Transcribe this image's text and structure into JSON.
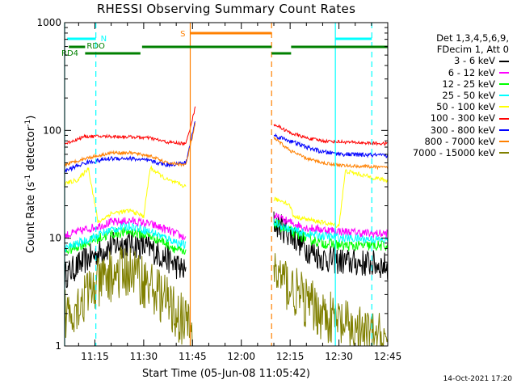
{
  "chart_data": {
    "type": "line",
    "title": "RHESSI Observing Summary Count Rates",
    "xlabel": "Start Time (05-Jun-08 11:05:42)",
    "ylabel_main": "Count Rate (s",
    "ylabel_sup1": "-1",
    "ylabel_mid": " detector",
    "ylabel_sup2": "-1",
    "ylabel_end": ")",
    "y_scale": "log",
    "ylim": [
      1,
      1000
    ],
    "xlim_min": [
      65.7,
      165
    ],
    "y_ticks": [
      {
        "v": 1,
        "label": "1"
      },
      {
        "v": 10,
        "label": "10"
      },
      {
        "v": 100,
        "label": "100"
      },
      {
        "v": 1000,
        "label": "1000"
      }
    ],
    "x_ticks": [
      {
        "t": 75,
        "label": "11:15"
      },
      {
        "t": 90,
        "label": "11:30"
      },
      {
        "t": 105,
        "label": "11:45"
      },
      {
        "t": 120,
        "label": "12:00"
      },
      {
        "t": 135,
        "label": "12:15"
      },
      {
        "t": 150,
        "label": "12:30"
      },
      {
        "t": 165,
        "label": "12:45"
      }
    ],
    "legend_header": [
      "Det 1,3,4,5,6,9,",
      "FDecim 1, Att 0"
    ],
    "series": [
      {
        "name": "3 - 6 keV",
        "color": "#000000",
        "seg1": [
          [
            65.7,
            4.5
          ],
          [
            72,
            6.2
          ],
          [
            80,
            8.5
          ],
          [
            86,
            9.0
          ],
          [
            92,
            8.0
          ],
          [
            97,
            6.5
          ],
          [
            103,
            4.8
          ]
        ],
        "seg2": [
          [
            130,
            14
          ],
          [
            135,
            11
          ],
          [
            140,
            8
          ],
          [
            145,
            6.5
          ],
          [
            152,
            6
          ],
          [
            160,
            5.8
          ],
          [
            165,
            5.5
          ]
        ],
        "noise": 0.13
      },
      {
        "name": "6 - 12 keV",
        "color": "#ff00ff",
        "seg1": [
          [
            65.7,
            10.5
          ],
          [
            72,
            12
          ],
          [
            80,
            14
          ],
          [
            86,
            14.5
          ],
          [
            92,
            13.5
          ],
          [
            97,
            12
          ],
          [
            103,
            10
          ]
        ],
        "seg2": [
          [
            130,
            16
          ],
          [
            135,
            14
          ],
          [
            140,
            12.5
          ],
          [
            145,
            12
          ],
          [
            152,
            11.5
          ],
          [
            160,
            11
          ],
          [
            165,
            11
          ]
        ],
        "noise": 0.04
      },
      {
        "name": "12 - 25 keV",
        "color": "#00ff00",
        "seg1": [
          [
            65.7,
            7.5
          ],
          [
            72,
            9
          ],
          [
            80,
            11
          ],
          [
            86,
            11.5
          ],
          [
            92,
            10.5
          ],
          [
            97,
            9
          ],
          [
            103,
            7
          ]
        ],
        "seg2": [
          [
            130,
            14
          ],
          [
            135,
            11.5
          ],
          [
            140,
            10
          ],
          [
            145,
            9
          ],
          [
            152,
            8.5
          ],
          [
            160,
            8.5
          ],
          [
            165,
            8.5
          ]
        ],
        "noise": 0.05
      },
      {
        "name": "25 - 50 keV",
        "color": "#00ffff",
        "seg1": [
          [
            65.7,
            8
          ],
          [
            72,
            9.5
          ],
          [
            80,
            12
          ],
          [
            86,
            13
          ],
          [
            92,
            11.5
          ],
          [
            97,
            10
          ],
          [
            103,
            8.5
          ]
        ],
        "seg2": [
          [
            130,
            14
          ],
          [
            135,
            12
          ],
          [
            140,
            11
          ],
          [
            145,
            10.5
          ],
          [
            152,
            10
          ],
          [
            160,
            9.8
          ],
          [
            165,
            9.5
          ]
        ],
        "noise": 0.04
      },
      {
        "name": "50 - 100 keV",
        "color": "#ffff00",
        "seg1": [
          [
            65.7,
            32
          ],
          [
            70,
            35
          ],
          [
            73,
            45
          ],
          [
            76,
            14
          ],
          [
            80,
            17
          ],
          [
            86,
            18
          ],
          [
            90,
            16
          ],
          [
            92,
            45
          ],
          [
            97,
            35
          ],
          [
            103,
            30
          ]
        ],
        "seg2": [
          [
            130,
            23
          ],
          [
            133,
            22
          ],
          [
            135,
            20
          ],
          [
            136,
            16
          ],
          [
            140,
            15
          ],
          [
            145,
            14
          ],
          [
            150,
            13
          ],
          [
            152,
            42
          ],
          [
            158,
            38
          ],
          [
            165,
            34
          ]
        ],
        "noise": 0.02
      },
      {
        "name": "100 - 300 keV",
        "color": "#ff0000",
        "seg1": [
          [
            65.7,
            75
          ],
          [
            72,
            88
          ],
          [
            80,
            88
          ],
          [
            86,
            87
          ],
          [
            92,
            85
          ],
          [
            97,
            78
          ],
          [
            103,
            75
          ],
          [
            106,
            170
          ]
        ],
        "seg2": [
          [
            130,
            115
          ],
          [
            135,
            95
          ],
          [
            140,
            85
          ],
          [
            145,
            80
          ],
          [
            152,
            78
          ],
          [
            160,
            76
          ],
          [
            165,
            75
          ]
        ],
        "noise": 0.015
      },
      {
        "name": "300 - 800 keV",
        "color": "#0000ff",
        "seg1": [
          [
            65.7,
            42
          ],
          [
            72,
            50
          ],
          [
            80,
            55
          ],
          [
            86,
            55
          ],
          [
            92,
            52
          ],
          [
            97,
            48
          ],
          [
            103,
            50
          ],
          [
            106,
            130
          ]
        ],
        "seg2": [
          [
            130,
            90
          ],
          [
            135,
            80
          ],
          [
            140,
            70
          ],
          [
            145,
            63
          ],
          [
            152,
            60
          ],
          [
            160,
            59
          ],
          [
            165,
            58
          ]
        ],
        "noise": 0.02
      },
      {
        "name": "800 - 7000 keV",
        "color": "#ff8000",
        "seg1": [
          [
            65.7,
            48
          ],
          [
            72,
            55
          ],
          [
            80,
            62
          ],
          [
            86,
            62
          ],
          [
            92,
            58
          ],
          [
            97,
            50
          ],
          [
            103,
            48
          ],
          [
            106,
            120
          ]
        ],
        "seg2": [
          [
            130,
            85
          ],
          [
            135,
            65
          ],
          [
            140,
            55
          ],
          [
            145,
            50
          ],
          [
            152,
            47
          ],
          [
            160,
            46
          ],
          [
            165,
            45
          ]
        ],
        "noise": 0.015
      },
      {
        "name": "7000 - 15000 keV",
        "color": "#808000",
        "seg1": [
          [
            65.7,
            2
          ],
          [
            70,
            2.5
          ],
          [
            75,
            3.5
          ],
          [
            80,
            4.5
          ],
          [
            86,
            5
          ],
          [
            90,
            4
          ],
          [
            95,
            3
          ],
          [
            100,
            2
          ],
          [
            105,
            1.4
          ]
        ],
        "seg2": [
          [
            130,
            5
          ],
          [
            135,
            3.5
          ],
          [
            140,
            2.5
          ],
          [
            145,
            2
          ],
          [
            152,
            1.5
          ],
          [
            160,
            1.2
          ],
          [
            165,
            1.1
          ]
        ],
        "noise": 0.25
      }
    ],
    "vlines": [
      {
        "t": 65.7,
        "color": "#00ffff",
        "dash": false
      },
      {
        "t": 75.3,
        "color": "#00ffff",
        "dash": true
      },
      {
        "t": 104.3,
        "color": "#ff8000",
        "dash": false
      },
      {
        "t": 129.3,
        "color": "#ff8000",
        "dash": true
      },
      {
        "t": 148.9,
        "color": "#00ffff",
        "dash": false
      },
      {
        "t": 160.1,
        "color": "#00ffff",
        "dash": true
      }
    ],
    "flag_bars": [
      {
        "label": "N",
        "color": "#00ffff",
        "t1": 66.5,
        "t2": 75.3,
        "y": 48,
        "w": 3
      },
      {
        "label": "",
        "color": "#00ffff",
        "t1": 148.9,
        "t2": 160.1,
        "y": 48,
        "w": 3
      },
      {
        "label": "S",
        "color": "#ff8000",
        "t1": 104.3,
        "t2": 129.3,
        "y": 41,
        "w": 3
      },
      {
        "label": "RDO",
        "color": "#008000",
        "t1": 67,
        "t2": 72,
        "y": 58,
        "w": 3
      },
      {
        "label": "RD4",
        "color": "#008000",
        "t1": 72,
        "t2": 89,
        "y": 66,
        "w": 3
      },
      {
        "label": "",
        "color": "#008000",
        "t1": 89.5,
        "t2": 129.3,
        "y": 58,
        "w": 3
      },
      {
        "label": "",
        "color": "#008000",
        "t1": 129.3,
        "t2": 135.3,
        "y": 66,
        "w": 3
      },
      {
        "label": "",
        "color": "#008000",
        "t1": 135.3,
        "t2": 165,
        "y": 58,
        "w": 3
      }
    ]
  },
  "footer": {
    "timestamp": "14-Oct-2021 17:20"
  }
}
